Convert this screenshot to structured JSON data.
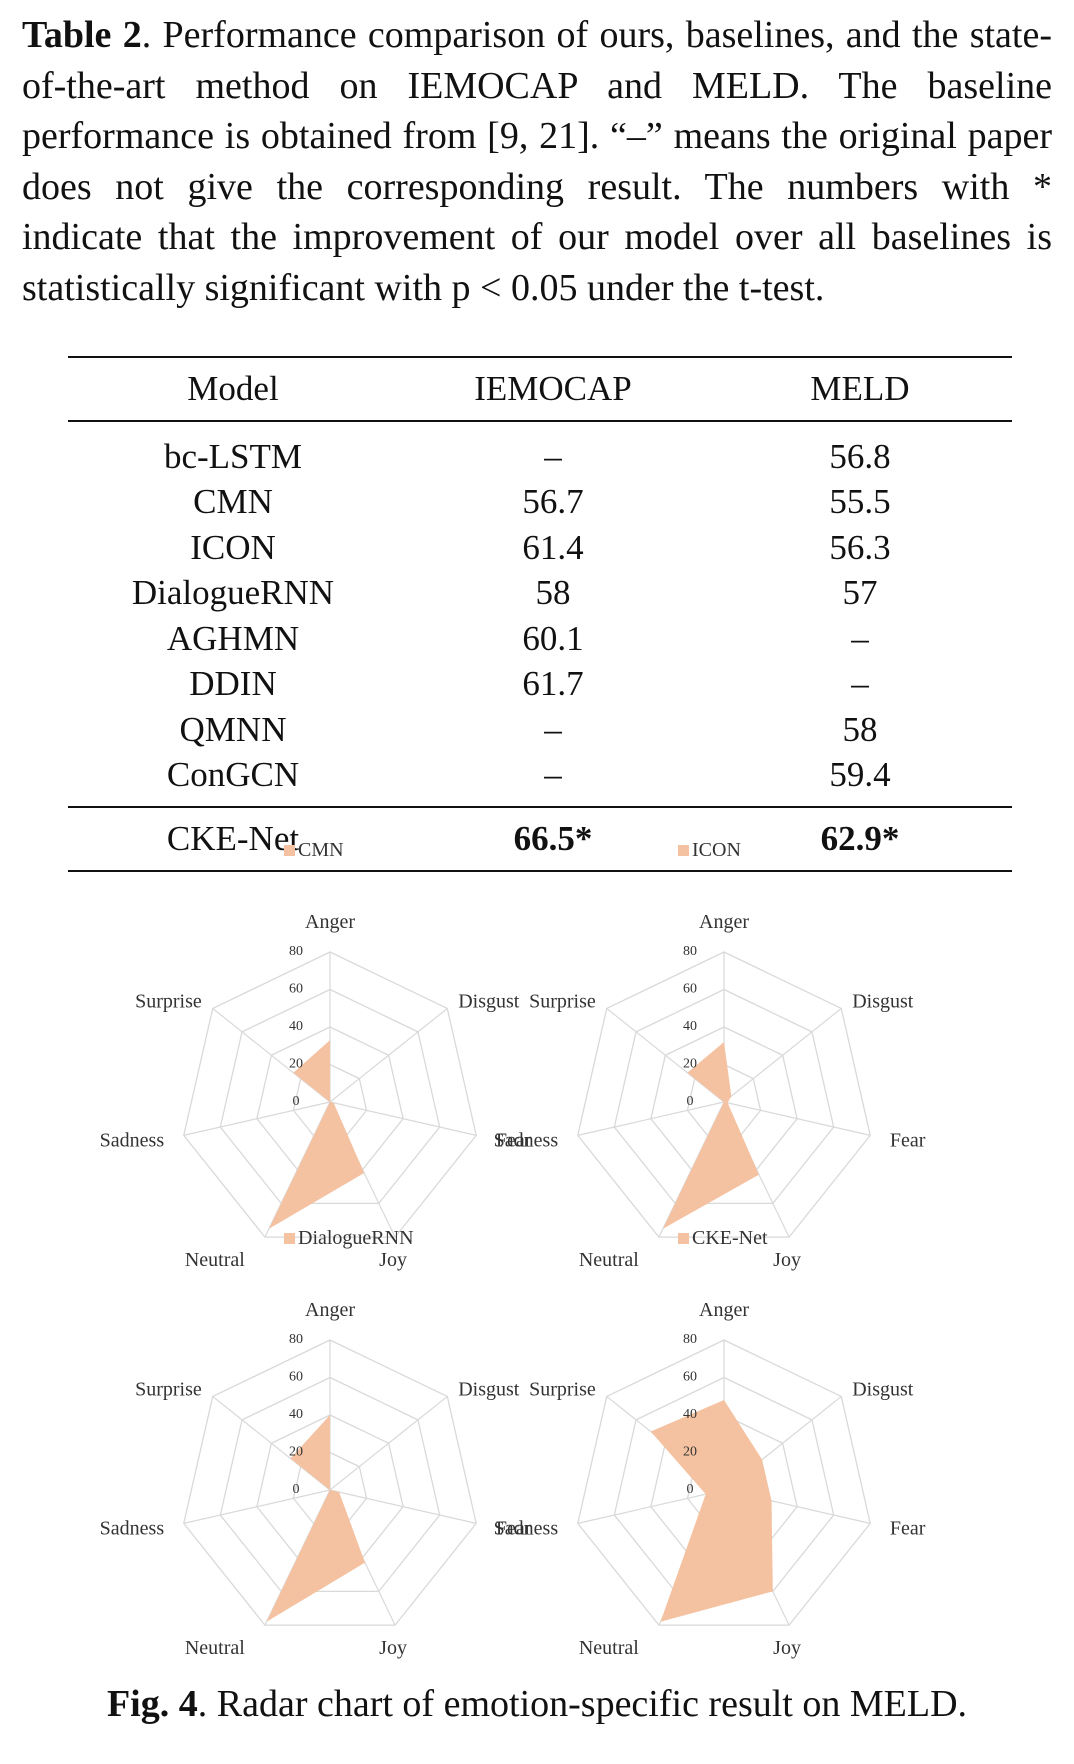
{
  "caption": {
    "label": "Table 2",
    "text": ". Performance comparison of ours, baselines, and the state-of-the-art method on IEMOCAP and MELD. The baseline performance is obtained from [9, 21]. “–” means the original paper does not give the corresponding result. The numbers with * indicate that the improvement of our model over all baselines is statistically significant with p < 0.05 under the t-test."
  },
  "table": {
    "headers": [
      "Model",
      "IEMOCAP",
      "MELD"
    ],
    "rows": [
      [
        "bc-LSTM",
        "–",
        "56.8"
      ],
      [
        "CMN",
        "56.7",
        "55.5"
      ],
      [
        "ICON",
        "61.4",
        "56.3"
      ],
      [
        "DialogueRNN",
        "58",
        "57"
      ],
      [
        "AGHMN",
        "60.1",
        "–"
      ],
      [
        "DDIN",
        "61.7",
        "–"
      ],
      [
        "QMNN",
        "–",
        "58"
      ],
      [
        "ConGCN",
        "–",
        "59.4"
      ]
    ],
    "ours": [
      "CKE-Net",
      "66.5*",
      "62.9*"
    ]
  },
  "chart_data": [
    {
      "type": "radar",
      "title": "",
      "axes": [
        "Anger",
        "Disgust",
        "Fear",
        "Joy",
        "Neutral",
        "Sadness",
        "Surprise"
      ],
      "ticks": [
        "0",
        "20",
        "40",
        "60",
        "80"
      ],
      "range": [
        0,
        80
      ],
      "grid": true,
      "legend_position": "top",
      "series": [
        {
          "name": "CMN",
          "values": [
            33,
            0,
            2,
            42,
            75,
            0,
            25
          ],
          "color": "#f4c2a1"
        }
      ]
    },
    {
      "type": "radar",
      "title": "",
      "axes": [
        "Anger",
        "Disgust",
        "Fear",
        "Joy",
        "Neutral",
        "Sadness",
        "Surprise"
      ],
      "ticks": [
        "0",
        "20",
        "40",
        "60",
        "80"
      ],
      "range": [
        0,
        80
      ],
      "grid": true,
      "legend_position": "top",
      "series": [
        {
          "name": "ICON",
          "values": [
            32,
            5,
            2,
            43,
            75,
            0,
            25
          ],
          "color": "#f4c2a1"
        }
      ]
    },
    {
      "type": "radar",
      "title": "",
      "axes": [
        "Anger",
        "Disgust",
        "Fear",
        "Joy",
        "Neutral",
        "Sadness",
        "Surprise"
      ],
      "ticks": [
        "0",
        "20",
        "40",
        "60",
        "80"
      ],
      "range": [
        0,
        80
      ],
      "grid": true,
      "legend_position": "top",
      "series": [
        {
          "name": "DialogueRNN",
          "values": [
            40,
            0,
            5,
            43,
            78,
            0,
            27
          ],
          "color": "#f4c2a1"
        }
      ]
    },
    {
      "type": "radar",
      "title": "",
      "axes": [
        "Anger",
        "Disgust",
        "Fear",
        "Joy",
        "Neutral",
        "Sadness",
        "Surprise"
      ],
      "ticks": [
        "0",
        "20",
        "40",
        "60",
        "80"
      ],
      "range": [
        0,
        80
      ],
      "grid": true,
      "legend_position": "top",
      "series": [
        {
          "name": "CKE-Net",
          "values": [
            48,
            26,
            26,
            60,
            78,
            10,
            50
          ],
          "color": "#f4c2a1"
        }
      ]
    }
  ],
  "figure_caption": {
    "label": "Fig. 4",
    "text": ". Radar chart of emotion-specific result on MELD."
  }
}
